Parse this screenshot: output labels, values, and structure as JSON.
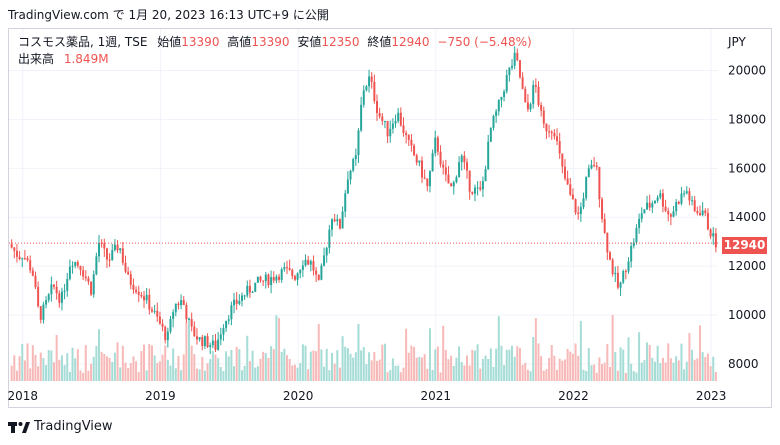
{
  "header": {
    "timestamp_line": "TradingView.com で 1月 20, 2023 16:13 UTC+9 に公開"
  },
  "legend": {
    "symbol": "コスモス薬品, 1週, TSE",
    "open_label": "始値",
    "open_value": "13390",
    "high_label": "高値",
    "high_value": "13390",
    "low_label": "安値",
    "low_value": "12350",
    "close_label": "終値",
    "close_value": "12940",
    "change": "−750 (−5.48%)",
    "volume_label": "出来高",
    "volume_value": "1.849M"
  },
  "footer": {
    "brand": "TradingView"
  },
  "chart_data": {
    "type": "candlestick",
    "currency": "JPY",
    "y_ticks": [
      8000,
      10000,
      12000,
      14000,
      16000,
      18000,
      20000
    ],
    "ylim": [
      7300,
      21700
    ],
    "x_ticks": [
      "2018",
      "2019",
      "2020",
      "2021",
      "2022",
      "2023"
    ],
    "xlim": [
      2017.9,
      2023.05
    ],
    "last_price": 12940,
    "last_price_label": "12940",
    "colors": {
      "up": "#26a69a",
      "down": "#ef5350",
      "up_vol": "#a5dcd6",
      "down_vol": "#f7b9b8"
    },
    "close_path": [
      [
        2017.9,
        12900
      ],
      [
        2017.97,
        12400
      ],
      [
        2018.0,
        12500
      ],
      [
        2018.07,
        11800
      ],
      [
        2018.12,
        9900
      ],
      [
        2018.16,
        10300
      ],
      [
        2018.22,
        11200
      ],
      [
        2018.28,
        10600
      ],
      [
        2018.35,
        12300
      ],
      [
        2018.42,
        12000
      ],
      [
        2018.5,
        11000
      ],
      [
        2018.55,
        13000
      ],
      [
        2018.62,
        12200
      ],
      [
        2018.7,
        12900
      ],
      [
        2018.76,
        11500
      ],
      [
        2018.83,
        11100
      ],
      [
        2018.9,
        10600
      ],
      [
        2018.98,
        9800
      ],
      [
        2019.05,
        9000
      ],
      [
        2019.1,
        10400
      ],
      [
        2019.16,
        10600
      ],
      [
        2019.22,
        9400
      ],
      [
        2019.28,
        9000
      ],
      [
        2019.33,
        8900
      ],
      [
        2019.4,
        8700
      ],
      [
        2019.46,
        9700
      ],
      [
        2019.52,
        10300
      ],
      [
        2019.6,
        10800
      ],
      [
        2019.7,
        11300
      ],
      [
        2019.8,
        11500
      ],
      [
        2019.9,
        11800
      ],
      [
        2019.98,
        11600
      ],
      [
        2020.04,
        12300
      ],
      [
        2020.1,
        12100
      ],
      [
        2020.15,
        11200
      ],
      [
        2020.2,
        12700
      ],
      [
        2020.25,
        14200
      ],
      [
        2020.3,
        13500
      ],
      [
        2020.36,
        15700
      ],
      [
        2020.42,
        16400
      ],
      [
        2020.47,
        19200
      ],
      [
        2020.52,
        19700
      ],
      [
        2020.58,
        18300
      ],
      [
        2020.65,
        17500
      ],
      [
        2020.72,
        18300
      ],
      [
        2020.8,
        17000
      ],
      [
        2020.88,
        16100
      ],
      [
        2020.94,
        15200
      ],
      [
        2021.0,
        17200
      ],
      [
        2021.06,
        15700
      ],
      [
        2021.12,
        15100
      ],
      [
        2021.18,
        16600
      ],
      [
        2021.25,
        15200
      ],
      [
        2021.33,
        15000
      ],
      [
        2021.4,
        17600
      ],
      [
        2021.46,
        18600
      ],
      [
        2021.52,
        19800
      ],
      [
        2021.58,
        20600
      ],
      [
        2021.62,
        19500
      ],
      [
        2021.66,
        18200
      ],
      [
        2021.72,
        19500
      ],
      [
        2021.78,
        17700
      ],
      [
        2021.86,
        17600
      ],
      [
        2021.92,
        15900
      ],
      [
        2021.98,
        14800
      ],
      [
        2022.04,
        14000
      ],
      [
        2022.1,
        15700
      ],
      [
        2022.16,
        16300
      ],
      [
        2022.22,
        13500
      ],
      [
        2022.27,
        12100
      ],
      [
        2022.33,
        11000
      ],
      [
        2022.38,
        12000
      ],
      [
        2022.44,
        13100
      ],
      [
        2022.5,
        14300
      ],
      [
        2022.56,
        14500
      ],
      [
        2022.62,
        15000
      ],
      [
        2022.7,
        14000
      ],
      [
        2022.76,
        14700
      ],
      [
        2022.82,
        15100
      ],
      [
        2022.88,
        14200
      ],
      [
        2022.94,
        14300
      ],
      [
        2022.98,
        13600
      ],
      [
        2023.03,
        12940
      ]
    ]
  }
}
